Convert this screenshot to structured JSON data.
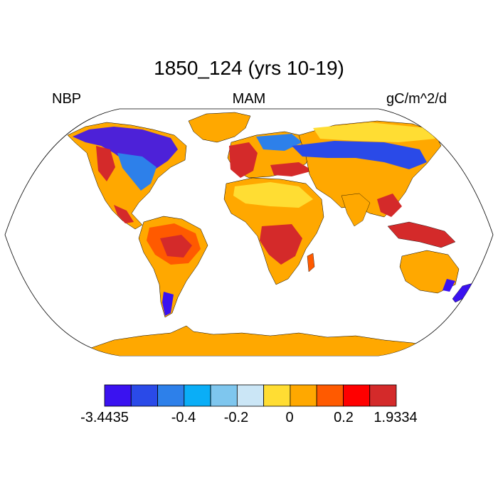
{
  "title": "1850_124 (yrs 10-19)",
  "left_label": "NBP",
  "center_label": "MAM",
  "right_label": "gC/m^2/d",
  "colorbar": {
    "colors": [
      "#3a12f0",
      "#2a4ae8",
      "#2d80ea",
      "#0aaef7",
      "#7ec6ee",
      "#cbe6f6",
      "#ffdd33",
      "#ffa800",
      "#ff5a00",
      "#ff0000",
      "#d42a2a"
    ],
    "tick_labels": [
      "-3.4435",
      "-0.4",
      "-0.2",
      "0",
      "0.2",
      "1.9334"
    ]
  },
  "colors": {
    "ocean": "#ffffff",
    "coast": "#000000"
  }
}
